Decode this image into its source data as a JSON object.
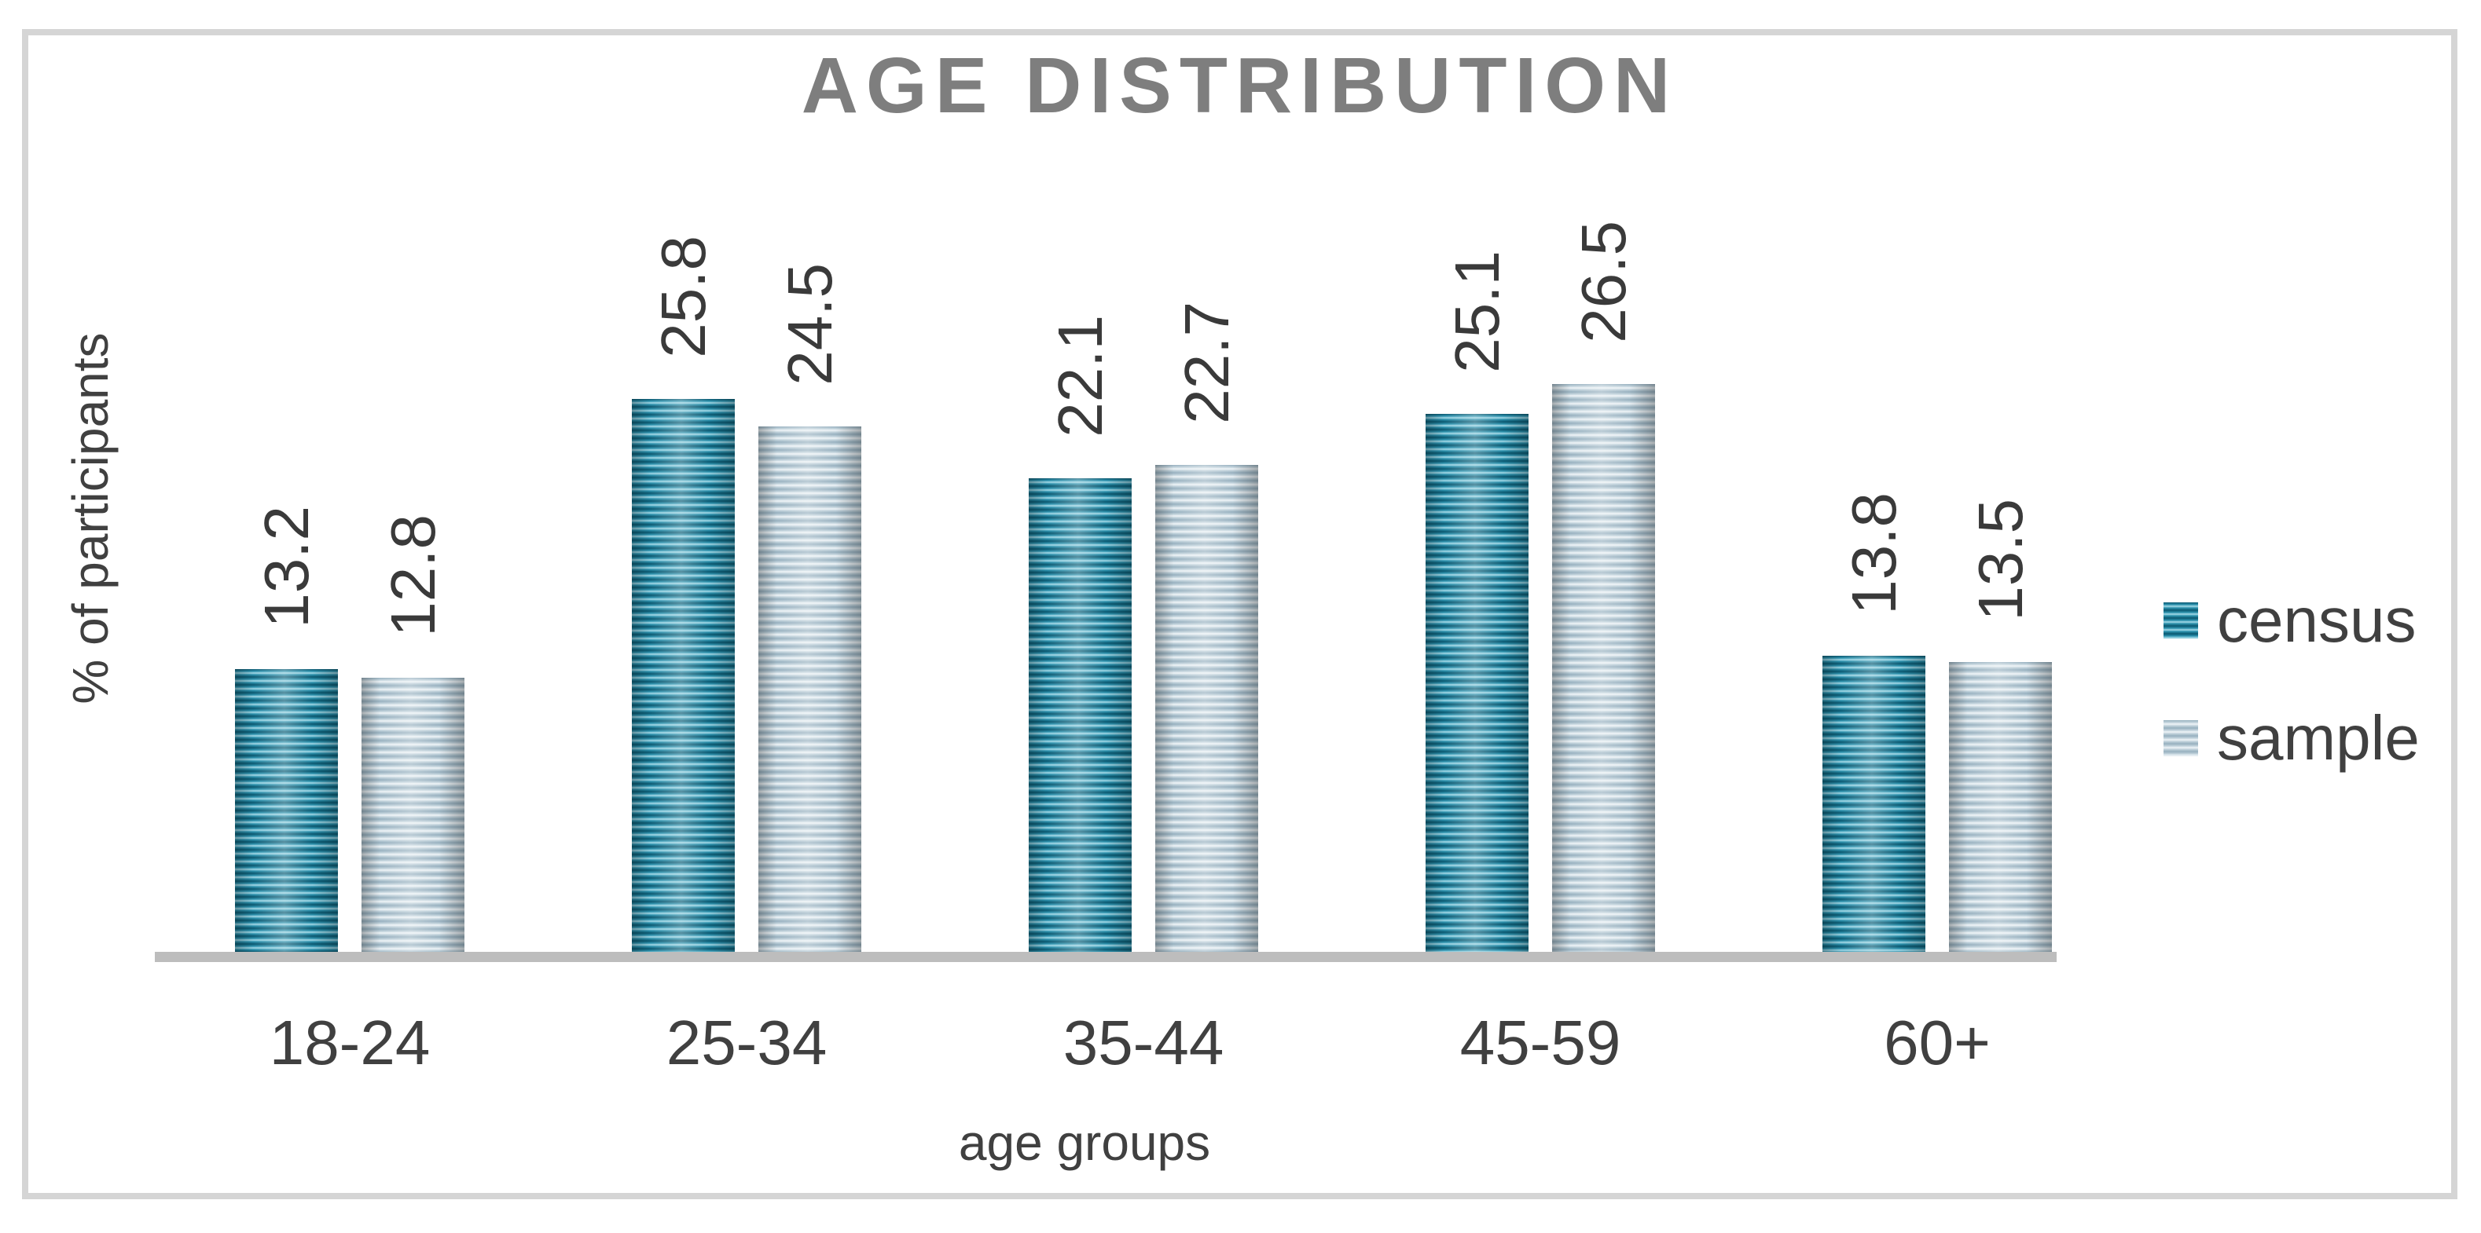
{
  "chart_data": {
    "type": "bar",
    "title": "AGE DISTRIBUTION",
    "xlabel": "age groups",
    "ylabel": "% of participants",
    "categories": [
      "18-24",
      "25-34",
      "35-44",
      "45-59",
      "60+"
    ],
    "series": [
      {
        "name": "census",
        "values": [
          13.2,
          25.8,
          22.1,
          25.1,
          13.8
        ],
        "color_dark": "#0a5870",
        "color_mid": "#2e94b0",
        "color_light": "#a8dbe8"
      },
      {
        "name": "sample",
        "values": [
          12.8,
          24.5,
          22.7,
          26.5,
          13.5
        ],
        "color_dark": "#97b0bf",
        "color_mid": "#c3d4dd",
        "color_light": "#f0f5f8"
      }
    ],
    "value_labels_shown": true,
    "legend_position": "right",
    "grid": "off",
    "ylim": [
      0,
      30
    ],
    "colors": {
      "axis_line": "#bdbdbd",
      "frame_border": "#d5d5d5",
      "title_text": "#7e7e7e",
      "label_text": "#404040",
      "value_text": "#3a3a3a"
    }
  }
}
